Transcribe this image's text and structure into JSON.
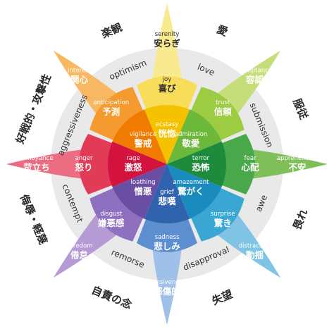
{
  "petals": [
    {
      "id": "joy",
      "color": "#f5c200",
      "light": "#f7dd5a",
      "pale": "#f9ea8f",
      "inner": {
        "en": "ecstasy",
        "jp": "恍惚"
      },
      "mid": {
        "en": "joy",
        "jp": "喜び"
      },
      "outer": {
        "en": "serenity",
        "jp": "安らぎ"
      }
    },
    {
      "id": "trust",
      "color": "#6bb83a",
      "light": "#9ccc42",
      "pale": "#c5de7a",
      "inner": {
        "en": "admiration",
        "jp": "敬愛"
      },
      "mid": {
        "en": "trust",
        "jp": "信頼"
      },
      "outer": {
        "en": "acceptance",
        "jp": "容認"
      }
    },
    {
      "id": "fear",
      "color": "#1e8a3b",
      "light": "#49a84a",
      "pale": "#7fbf5a",
      "inner": {
        "en": "terror",
        "jp": "恐怖"
      },
      "mid": {
        "en": "fear",
        "jp": "心配"
      },
      "outer": {
        "en": "apprehension",
        "jp": "不安"
      }
    },
    {
      "id": "surprise",
      "color": "#1a8bbf",
      "light": "#3aa6d4",
      "pale": "#7fc4e4",
      "inner": {
        "en": "amazement",
        "jp": "驚がく"
      },
      "mid": {
        "en": "surprise",
        "jp": "驚き"
      },
      "outer": {
        "en": "distraction",
        "jp": "動揺"
      }
    },
    {
      "id": "sadness",
      "color": "#2f63ad",
      "light": "#5d8fd0",
      "pale": "#9fc0e8",
      "inner": {
        "en": "grief",
        "jp": "悲嘆"
      },
      "mid": {
        "en": "sadness",
        "jp": "悲しみ"
      },
      "outer": {
        "en": "pensiveness",
        "jp": "感傷的"
      }
    },
    {
      "id": "disgust",
      "color": "#6a4ea3",
      "light": "#8f6fc0",
      "pale": "#b69ad6",
      "inner": {
        "en": "loathing",
        "jp": "憎悪"
      },
      "mid": {
        "en": "disgust",
        "jp": "嫌悪感"
      },
      "outer": {
        "en": "boredom",
        "jp": "倦怠"
      }
    },
    {
      "id": "anger",
      "color": "#d3123d",
      "light": "#e23b58",
      "pale": "#ec6d82",
      "inner": {
        "en": "rage",
        "jp": "激怒"
      },
      "mid": {
        "en": "anger",
        "jp": "怒り"
      },
      "outer": {
        "en": "annoyance",
        "jp": "苛立ち"
      }
    },
    {
      "id": "anticipation",
      "color": "#f07b00",
      "light": "#f49a2e",
      "pale": "#f8b862",
      "inner": {
        "en": "vigilance",
        "jp": "警戒"
      },
      "mid": {
        "en": "anticipation",
        "jp": "予測"
      },
      "outer": {
        "en": "interest",
        "jp": "関心"
      }
    }
  ],
  "combinations": [
    {
      "en": "love",
      "jp": "愛"
    },
    {
      "en": "submission",
      "jp": "服従"
    },
    {
      "en": "awe",
      "jp": "畏れ"
    },
    {
      "en": "disapproval",
      "jp": "失望"
    },
    {
      "en": "remorse",
      "jp": "自責の念"
    },
    {
      "en": "contempt",
      "jp": "侮辱・軽蔑"
    },
    {
      "en": "aggressiveness",
      "jp": "好戦的・攻撃性"
    },
    {
      "en": "optimism",
      "jp": "楽観"
    }
  ]
}
